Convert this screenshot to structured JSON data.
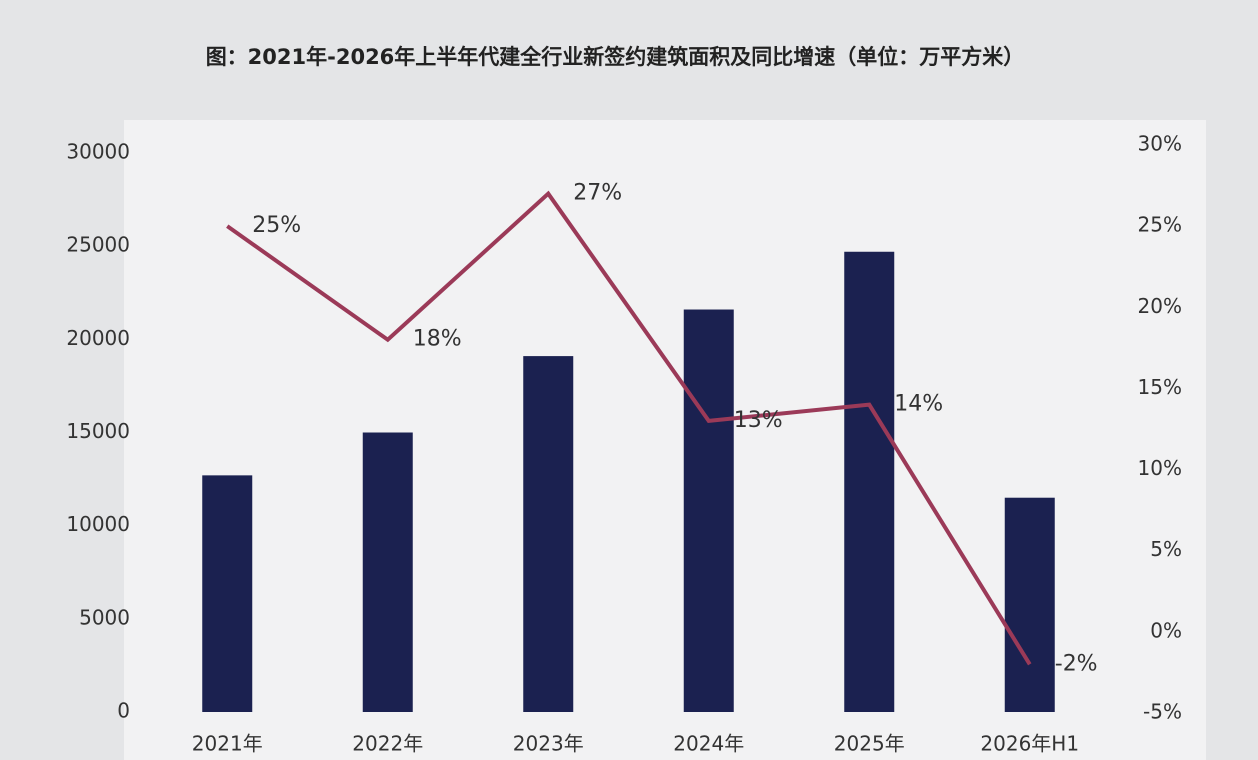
{
  "chart_data": {
    "type": "bar-line",
    "title": "图：2021年-2026年上半年代建全行业新签约建筑面积及同比增速（单位：万平方米）",
    "categories": [
      "2021年",
      "2022年",
      "2023年",
      "2024年",
      "2025年",
      "2026年H1"
    ],
    "series": [
      {
        "type": "bar",
        "color": "#1b2150",
        "values": [
          12700,
          15000,
          19100,
          21600,
          24700,
          11500
        ]
      },
      {
        "type": "line",
        "axis": "y2",
        "color": "#9b3a58",
        "values": [
          25,
          18,
          27,
          13,
          14,
          -2
        ],
        "value_labels": [
          "25%",
          "18%",
          "27%",
          "13%",
          "14%",
          "-2%"
        ]
      }
    ],
    "ylim": [
      0,
      30000
    ],
    "yticks": [
      0,
      5000,
      10000,
      15000,
      20000,
      25000,
      30000
    ],
    "y2lim": [
      -5,
      30
    ],
    "y2ticks": [
      {
        "value": -5,
        "label": "-5%"
      },
      {
        "value": 0,
        "label": "0%"
      },
      {
        "value": 5,
        "label": "5%"
      },
      {
        "value": 10,
        "label": "10%"
      },
      {
        "value": 15,
        "label": "15%"
      },
      {
        "value": 20,
        "label": "20%"
      },
      {
        "value": 25,
        "label": "25%"
      },
      {
        "value": 30,
        "label": "30%"
      }
    ]
  }
}
